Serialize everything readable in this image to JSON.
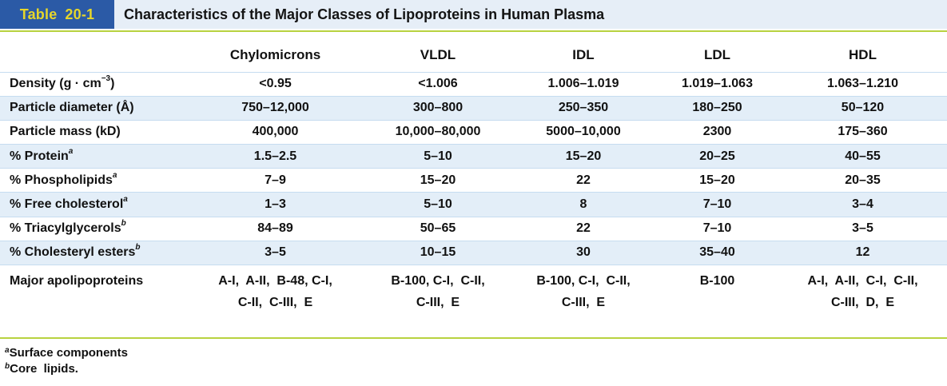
{
  "header": {
    "table_number": "Table 20-1",
    "table_word": "Table",
    "table_num": "20-1",
    "title": "Characteristics of the Major Classes of Lipoproteins in Human Plasma"
  },
  "columns": [
    "Chylomicrons",
    "VLDL",
    "IDL",
    "LDL",
    "HDL"
  ],
  "rows": [
    {
      "label": "Density (g · cm",
      "label_sup": "−3",
      "label_tail": ")",
      "footnote": "",
      "values": [
        "<0.95",
        "<1.006",
        "1.006–1.019",
        "1.019–1.063",
        "1.063–1.210"
      ]
    },
    {
      "label": "Particle diameter (Å)",
      "label_sup": "",
      "label_tail": "",
      "footnote": "",
      "values": [
        "750–12,000",
        "300–800",
        "250–350",
        "180–250",
        "50–120"
      ]
    },
    {
      "label": "Particle mass (kD)",
      "label_sup": "",
      "label_tail": "",
      "footnote": "",
      "values": [
        "400,000",
        "10,000–80,000",
        "5000–10,000",
        "2300",
        "175–360"
      ]
    },
    {
      "label": "% Protein",
      "label_sup": "",
      "label_tail": "",
      "footnote": "a",
      "values": [
        "1.5–2.5",
        "5–10",
        "15–20",
        "20–25",
        "40–55"
      ]
    },
    {
      "label": "% Phospholipids",
      "label_sup": "",
      "label_tail": "",
      "footnote": "a",
      "values": [
        "7–9",
        "15–20",
        "22",
        "15–20",
        "20–35"
      ]
    },
    {
      "label": "% Free cholesterol",
      "label_sup": "",
      "label_tail": "",
      "footnote": "a",
      "values": [
        "1–3",
        "5–10",
        "8",
        "7–10",
        "3–4"
      ]
    },
    {
      "label": "% Triacylglycerols",
      "label_sup": "",
      "label_tail": "",
      "footnote": "b",
      "values": [
        "84–89",
        "50–65",
        "22",
        "7–10",
        "3–5"
      ]
    },
    {
      "label": "% Cholesteryl esters",
      "label_sup": "",
      "label_tail": "",
      "footnote": "b",
      "values": [
        "3–5",
        "10–15",
        "30",
        "35–40",
        "12"
      ]
    }
  ],
  "apolipoproteins": {
    "label": "Major apolipoproteins",
    "values": [
      {
        "line1": "A-I,  A-II,  B-48, C-I,",
        "line2": "C-II,  C-III,  E"
      },
      {
        "line1": "B-100, C-I,  C-II,",
        "line2": "C-III,  E"
      },
      {
        "line1": "B-100, C-I,  C-II,",
        "line2": "C-III,  E"
      },
      {
        "line1": "B-100",
        "line2": ""
      },
      {
        "line1": "A-I,  A-II,  C-I,  C-II,",
        "line2": "C-III,  D,  E"
      }
    ]
  },
  "footnotes": [
    {
      "mark": "a",
      "text": "Surface components"
    },
    {
      "mark": "b",
      "text": "Core  lipids."
    }
  ],
  "colors": {
    "tag_bg": "#2b5aa6",
    "tag_text": "#e6d62b",
    "title_bg": "#e6eef7",
    "rule": "#b8d240",
    "row_shade": "#e3eef8"
  }
}
